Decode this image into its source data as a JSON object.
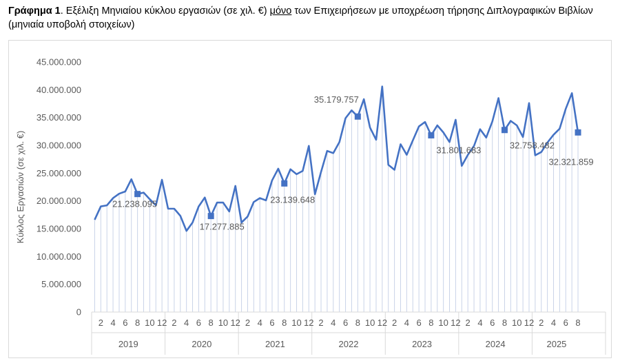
{
  "caption": {
    "bold": "Γράφημα 1",
    "part1": ". Εξέλιξη Μηνιαίου κύκλου εργασιών (σε χιλ. €) ",
    "underlined": "μόνο",
    "part2": " των Επιχειρήσεων με υποχρέωση τήρησης Διπλογραφικών Βιβλίων (μηνιαία υποβολή στοιχείων)"
  },
  "chart_data": {
    "type": "line",
    "ylabel": "Κύκλος Εργασιών (σε χιλ. €)",
    "ylim": [
      0,
      45000000
    ],
    "yticks": [
      "0",
      "5.000.000",
      "10.000.000",
      "15.000.000",
      "20.000.000",
      "25.000.000",
      "30.000.000",
      "35.000.000",
      "40.000.000",
      "45.000.000"
    ],
    "month_tick_labels": [
      "2",
      "4",
      "6",
      "8",
      "10",
      "12"
    ],
    "years": [
      "2019",
      "2020",
      "2021",
      "2022",
      "2023",
      "2024",
      "2025"
    ],
    "series_color": "#4472c4",
    "grid": "none",
    "drop_lines": true,
    "series": [
      {
        "values": [
          16600000,
          19000000,
          19200000,
          20500000,
          21300000,
          21700000,
          23900000,
          21238095,
          21500000,
          20300000,
          19200000,
          23800000,
          18600000,
          18600000,
          17300000,
          14600000,
          16100000,
          19000000,
          20600000,
          17277885,
          19700000,
          19700000,
          18100000,
          22700000,
          16100000,
          17200000,
          19800000,
          20500000,
          20100000,
          23700000,
          25800000,
          23139648,
          25700000,
          24800000,
          25400000,
          29900000,
          21200000,
          25200000,
          29000000,
          28600000,
          30600000,
          34900000,
          36300000,
          35179757,
          38300000,
          33200000,
          31000000,
          40600000,
          26500000,
          25600000,
          30200000,
          28300000,
          30900000,
          33400000,
          34200000,
          31801683,
          33600000,
          32300000,
          30600000,
          34600000,
          26300000,
          28300000,
          29900000,
          32900000,
          31400000,
          34300000,
          38500000,
          32758482,
          34400000,
          33600000,
          31500000,
          37600000,
          28200000,
          28800000,
          30500000,
          31900000,
          33000000,
          36600000,
          39400000,
          32321859
        ]
      }
    ],
    "highlighted_points": [
      {
        "index": 7,
        "label": "21.238.095"
      },
      {
        "index": 19,
        "label": "17.277.885"
      },
      {
        "index": 31,
        "label": "23.139.648"
      },
      {
        "index": 43,
        "label": "35.179.757"
      },
      {
        "index": 55,
        "label": "31.801.683"
      },
      {
        "index": 67,
        "label": "32.758.482"
      },
      {
        "index": 79,
        "label": "32.321.859"
      }
    ]
  }
}
